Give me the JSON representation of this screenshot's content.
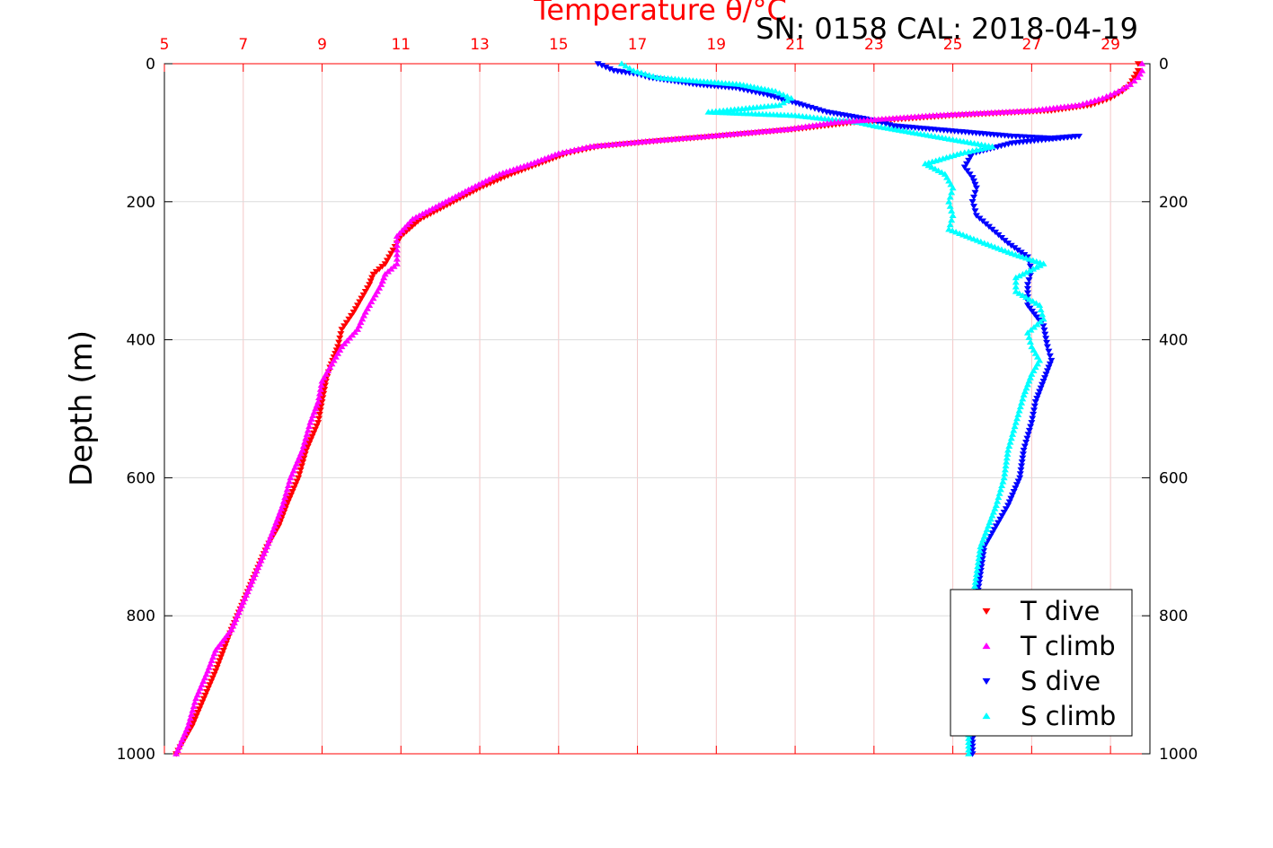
{
  "chart_data": {
    "type": "scatter",
    "title": "Temperature θ/°C",
    "subtitle": "SN: 0158  CAL: 2018-04-19",
    "ylabel": "Depth (m)",
    "xlim": [
      5,
      30
    ],
    "ylim": [
      0,
      1000
    ],
    "y_reversed": true,
    "x_ticks": [
      "5",
      "7",
      "9",
      "11",
      "13",
      "15",
      "17",
      "19",
      "21",
      "23",
      "25",
      "27",
      "29"
    ],
    "y_ticks": [
      "0",
      "200",
      "400",
      "600",
      "800",
      "1000"
    ],
    "grid": true,
    "legend_position": "bottom-right",
    "note_x_axis": "Top axis shows temperature; salinity series plotted on same frame without printed scale",
    "series": [
      {
        "name": "T dive",
        "color": "#ff0000",
        "marker": "triangle-down",
        "points": [
          [
            29.7,
            0
          ],
          [
            29.7,
            10
          ],
          [
            29.6,
            20
          ],
          [
            29.5,
            30
          ],
          [
            29.3,
            40
          ],
          [
            29.0,
            50
          ],
          [
            28.5,
            60
          ],
          [
            27.5,
            68
          ],
          [
            25.0,
            75
          ],
          [
            22.5,
            85
          ],
          [
            21.0,
            95
          ],
          [
            19.0,
            105
          ],
          [
            17.5,
            112
          ],
          [
            16.0,
            120
          ],
          [
            15.2,
            130
          ],
          [
            14.5,
            145
          ],
          [
            13.8,
            160
          ],
          [
            13.0,
            180
          ],
          [
            12.5,
            195
          ],
          [
            12.0,
            210
          ],
          [
            11.5,
            225
          ],
          [
            11.0,
            250
          ],
          [
            10.8,
            270
          ],
          [
            10.6,
            290
          ],
          [
            10.3,
            305
          ],
          [
            10.2,
            320
          ],
          [
            10.0,
            340
          ],
          [
            9.8,
            360
          ],
          [
            9.5,
            385
          ],
          [
            9.4,
            410
          ],
          [
            9.2,
            440
          ],
          [
            9.1,
            460
          ],
          [
            9.0,
            490
          ],
          [
            8.9,
            520
          ],
          [
            8.6,
            560
          ],
          [
            8.4,
            600
          ],
          [
            8.1,
            640
          ],
          [
            7.9,
            670
          ],
          [
            7.6,
            700
          ],
          [
            7.3,
            740
          ],
          [
            7.0,
            780
          ],
          [
            6.7,
            820
          ],
          [
            6.5,
            850
          ],
          [
            6.3,
            880
          ],
          [
            6.0,
            920
          ],
          [
            5.7,
            960
          ],
          [
            5.3,
            1000
          ]
        ]
      },
      {
        "name": "T climb",
        "color": "#ff00ff",
        "marker": "triangle-up",
        "points": [
          [
            29.8,
            0
          ],
          [
            29.8,
            10
          ],
          [
            29.7,
            20
          ],
          [
            29.5,
            30
          ],
          [
            29.2,
            40
          ],
          [
            28.8,
            50
          ],
          [
            28.2,
            60
          ],
          [
            27.0,
            68
          ],
          [
            24.5,
            75
          ],
          [
            22.0,
            85
          ],
          [
            20.8,
            95
          ],
          [
            18.8,
            105
          ],
          [
            17.3,
            112
          ],
          [
            15.8,
            120
          ],
          [
            15.0,
            130
          ],
          [
            14.3,
            145
          ],
          [
            13.5,
            160
          ],
          [
            12.8,
            180
          ],
          [
            12.3,
            195
          ],
          [
            11.8,
            210
          ],
          [
            11.3,
            225
          ],
          [
            10.9,
            250
          ],
          [
            10.9,
            270
          ],
          [
            10.9,
            290
          ],
          [
            10.6,
            305
          ],
          [
            10.5,
            320
          ],
          [
            10.3,
            340
          ],
          [
            10.1,
            360
          ],
          [
            9.9,
            385
          ],
          [
            9.5,
            410
          ],
          [
            9.2,
            440
          ],
          [
            9.0,
            460
          ],
          [
            8.9,
            490
          ],
          [
            8.7,
            520
          ],
          [
            8.5,
            560
          ],
          [
            8.2,
            600
          ],
          [
            8.0,
            640
          ],
          [
            7.8,
            670
          ],
          [
            7.6,
            700
          ],
          [
            7.3,
            740
          ],
          [
            7.0,
            780
          ],
          [
            6.7,
            820
          ],
          [
            6.3,
            850
          ],
          [
            6.1,
            880
          ],
          [
            5.8,
            920
          ],
          [
            5.6,
            960
          ],
          [
            5.3,
            1000
          ]
        ]
      },
      {
        "name": "S dive",
        "color": "#0000ff",
        "marker": "triangle-down",
        "points": [
          [
            16.0,
            0
          ],
          [
            16.4,
            10
          ],
          [
            17.0,
            15
          ],
          [
            17.3,
            20
          ],
          [
            18.5,
            30
          ],
          [
            19.5,
            35
          ],
          [
            20.3,
            45
          ],
          [
            21.2,
            60
          ],
          [
            21.8,
            70
          ],
          [
            22.8,
            80
          ],
          [
            23.5,
            90
          ],
          [
            24.5,
            95
          ],
          [
            25.5,
            100
          ],
          [
            26.5,
            105
          ],
          [
            27.5,
            108
          ],
          [
            28.2,
            105
          ],
          [
            26.5,
            115
          ],
          [
            25.5,
            130
          ],
          [
            25.3,
            150
          ],
          [
            25.5,
            165
          ],
          [
            25.6,
            180
          ],
          [
            25.5,
            200
          ],
          [
            25.6,
            220
          ],
          [
            26.0,
            240
          ],
          [
            26.4,
            260
          ],
          [
            26.9,
            280
          ],
          [
            27.0,
            300
          ],
          [
            26.9,
            320
          ],
          [
            26.9,
            350
          ],
          [
            27.3,
            380
          ],
          [
            27.4,
            410
          ],
          [
            27.5,
            430
          ],
          [
            27.3,
            460
          ],
          [
            27.1,
            490
          ],
          [
            27.0,
            520
          ],
          [
            26.8,
            560
          ],
          [
            26.7,
            600
          ],
          [
            26.4,
            640
          ],
          [
            26.1,
            670
          ],
          [
            25.8,
            700
          ],
          [
            25.7,
            740
          ],
          [
            25.6,
            780
          ],
          [
            25.5,
            820
          ],
          [
            25.5,
            860
          ],
          [
            25.5,
            900
          ],
          [
            25.5,
            950
          ],
          [
            25.5,
            1000
          ]
        ]
      },
      {
        "name": "S climb",
        "color": "#00ffff",
        "marker": "triangle-up",
        "points": [
          [
            16.6,
            0
          ],
          [
            16.9,
            10
          ],
          [
            17.5,
            20
          ],
          [
            18.5,
            25
          ],
          [
            19.6,
            30
          ],
          [
            20.5,
            40
          ],
          [
            20.9,
            50
          ],
          [
            20.6,
            60
          ],
          [
            18.8,
            70
          ],
          [
            21.0,
            75
          ],
          [
            22.6,
            85
          ],
          [
            23.0,
            90
          ],
          [
            24.0,
            100
          ],
          [
            25.0,
            110
          ],
          [
            26.0,
            120
          ],
          [
            25.2,
            130
          ],
          [
            24.3,
            145
          ],
          [
            24.8,
            160
          ],
          [
            25.0,
            180
          ],
          [
            24.9,
            200
          ],
          [
            25.0,
            220
          ],
          [
            24.9,
            240
          ],
          [
            25.8,
            260
          ],
          [
            26.5,
            275
          ],
          [
            27.3,
            290
          ],
          [
            26.6,
            310
          ],
          [
            26.6,
            330
          ],
          [
            27.2,
            350
          ],
          [
            27.3,
            370
          ],
          [
            26.9,
            390
          ],
          [
            27.0,
            410
          ],
          [
            27.2,
            430
          ],
          [
            27.0,
            450
          ],
          [
            26.8,
            480
          ],
          [
            26.6,
            520
          ],
          [
            26.4,
            560
          ],
          [
            26.3,
            600
          ],
          [
            26.1,
            640
          ],
          [
            25.9,
            670
          ],
          [
            25.7,
            700
          ],
          [
            25.6,
            740
          ],
          [
            25.5,
            780
          ],
          [
            25.4,
            820
          ],
          [
            25.4,
            860
          ],
          [
            25.4,
            900
          ],
          [
            25.4,
            950
          ],
          [
            25.4,
            1000
          ]
        ]
      }
    ]
  }
}
